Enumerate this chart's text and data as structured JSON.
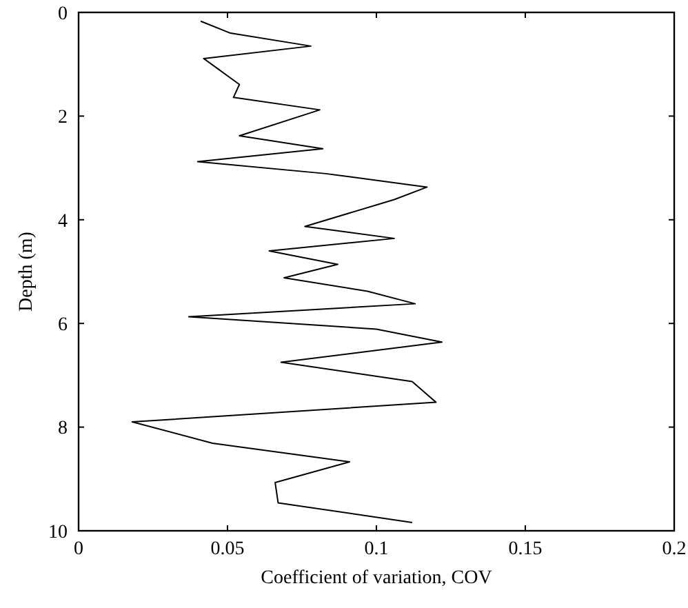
{
  "chart_data": {
    "type": "line",
    "xlabel": "Coefficient of variation, COV",
    "ylabel": "Depth (m)",
    "xlim": [
      0,
      0.2
    ],
    "xticks": [
      0,
      0.05,
      0.1,
      0.15,
      0.2
    ],
    "ylim": [
      10,
      0
    ],
    "yticks": [
      0,
      2,
      4,
      6,
      8,
      10
    ],
    "grid": false,
    "series": [
      {
        "color": "#000000",
        "x": [
          0.041,
          0.051,
          0.078,
          0.042,
          0.054,
          0.052,
          0.081,
          0.054,
          0.082,
          0.04,
          0.083,
          0.117,
          0.106,
          0.076,
          0.106,
          0.064,
          0.087,
          0.069,
          0.097,
          0.113,
          0.037,
          0.1,
          0.122,
          0.068,
          0.112,
          0.12,
          0.018,
          0.045,
          0.091,
          0.066,
          0.067,
          0.112
        ],
        "values": [
          0.17,
          0.4,
          0.65,
          0.89,
          1.39,
          1.64,
          1.88,
          2.38,
          2.63,
          2.88,
          3.11,
          3.37,
          3.61,
          4.13,
          4.36,
          4.6,
          4.86,
          5.12,
          5.38,
          5.62,
          5.87,
          6.11,
          6.36,
          6.75,
          7.12,
          7.52,
          7.9,
          8.31,
          8.67,
          9.07,
          9.46,
          9.84
        ]
      }
    ]
  }
}
